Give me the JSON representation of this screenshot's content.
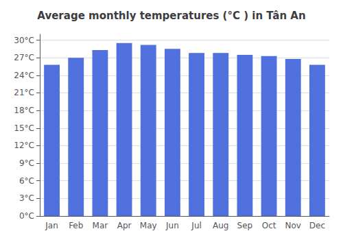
{
  "chart_data": {
    "type": "bar",
    "title": "Average monthly temperatures (°C ) in Tân An",
    "categories": [
      "Jan",
      "Feb",
      "Mar",
      "Apr",
      "May",
      "Jun",
      "Jul",
      "Aug",
      "Sep",
      "Oct",
      "Nov",
      "Dec"
    ],
    "values": [
      25.8,
      27.0,
      28.3,
      29.5,
      29.2,
      28.5,
      27.8,
      27.8,
      27.5,
      27.3,
      26.8,
      25.8
    ],
    "ylim": [
      0,
      31
    ],
    "yticks": [
      {
        "value": 0,
        "label": "0°C"
      },
      {
        "value": 3,
        "label": "3°C"
      },
      {
        "value": 6,
        "label": "6°C"
      },
      {
        "value": 9,
        "label": "9°C"
      },
      {
        "value": 12,
        "label": "12°C"
      },
      {
        "value": 15,
        "label": "15°C"
      },
      {
        "value": 18,
        "label": "18°C"
      },
      {
        "value": 21,
        "label": "21°C"
      },
      {
        "value": 24,
        "label": "24°C"
      },
      {
        "value": 27,
        "label": "27°C"
      },
      {
        "value": 30,
        "label": "30°C"
      }
    ],
    "grid": true
  }
}
